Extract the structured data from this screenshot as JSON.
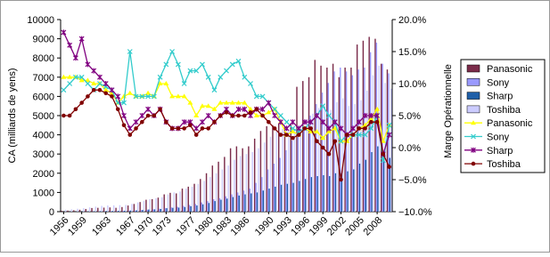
{
  "chart_data": {
    "type": "bar",
    "categories": [
      "1956",
      null,
      null,
      "1959",
      null,
      null,
      null,
      "1963",
      null,
      null,
      null,
      "1967",
      null,
      null,
      "1970",
      null,
      null,
      "1973",
      null,
      null,
      null,
      "1977",
      null,
      null,
      "1980",
      null,
      null,
      "1983",
      null,
      null,
      "1986",
      null,
      null,
      null,
      "1990",
      null,
      null,
      "1993",
      null,
      null,
      "1996",
      null,
      null,
      "1999",
      null,
      null,
      "2002",
      null,
      null,
      "2005",
      null,
      null,
      "2008",
      null,
      null
    ],
    "ylabel": "CA (milliards de yens)",
    "y2label": "Marge Opérationnelle",
    "ylim": [
      0,
      10000
    ],
    "yticks": [
      0,
      1000,
      2000,
      3000,
      4000,
      5000,
      6000,
      7000,
      8000,
      9000,
      10000
    ],
    "y2lim": [
      -10,
      20
    ],
    "y2ticks": [
      {
        "value": -10,
        "label": "−10.0%"
      },
      {
        "value": -5,
        "label": "−5.0%"
      },
      {
        "value": 0,
        "label": "0.0%"
      },
      {
        "value": 5,
        "label": "5.0%"
      },
      {
        "value": 10,
        "label": "10.0%"
      },
      {
        "value": 15,
        "label": "15.0%"
      },
      {
        "value": 20,
        "label": "20.0%"
      }
    ],
    "legend": "right",
    "series": [
      {
        "name": "Panasonic",
        "type": "bar",
        "color": "#7b2c4a",
        "values": [
          40,
          55,
          70,
          100,
          140,
          190,
          200,
          210,
          220,
          200,
          240,
          320,
          400,
          500,
          620,
          650,
          730,
          900,
          980,
          950,
          1200,
          1300,
          1450,
          1700,
          2000,
          2400,
          2600,
          2850,
          3300,
          3400,
          3300,
          3400,
          3800,
          4200,
          4450,
          4500,
          4600,
          4400,
          4600,
          6500,
          6800,
          7000,
          7900,
          7600,
          7500,
          7700,
          7000,
          7500,
          7500,
          8700,
          8900,
          9100,
          9000,
          7700,
          7400
        ]
      },
      {
        "name": "Sony",
        "type": "bar",
        "color": "#9999ff",
        "values": [
          0,
          0,
          0,
          5,
          10,
          15,
          20,
          25,
          30,
          35,
          40,
          50,
          60,
          80,
          100,
          120,
          150,
          180,
          220,
          250,
          300,
          350,
          400,
          480,
          550,
          650,
          700,
          800,
          900,
          1000,
          1100,
          1200,
          1500,
          1800,
          2200,
          2500,
          2800,
          3200,
          3700,
          4000,
          4400,
          5000,
          5600,
          6200,
          6700,
          7300,
          7500,
          7300,
          7100,
          7400,
          7500,
          8300,
          8800,
          7700,
          7200
        ]
      },
      {
        "name": "Sharp",
        "type": "bar",
        "color": "#1f5fa8",
        "values": [
          5,
          7,
          10,
          15,
          20,
          25,
          30,
          35,
          40,
          45,
          50,
          60,
          70,
          90,
          110,
          120,
          140,
          180,
          200,
          210,
          240,
          280,
          320,
          380,
          450,
          550,
          620,
          680,
          760,
          840,
          900,
          950,
          1000,
          1100,
          1200,
          1300,
          1400,
          1450,
          1500,
          1600,
          1700,
          1800,
          1850,
          1900,
          1850,
          2000,
          2000,
          2100,
          2200,
          2500,
          2700,
          3100,
          3400,
          2800,
          2800
        ]
      },
      {
        "name": "Toshiba",
        "type": "bar",
        "color": "#ccccff",
        "values": [
          100,
          120,
          150,
          180,
          220,
          260,
          300,
          320,
          330,
          340,
          350,
          400,
          480,
          560,
          650,
          700,
          750,
          900,
          1000,
          1050,
          1200,
          1300,
          1450,
          1600,
          1800,
          2000,
          2200,
          2400,
          2700,
          2900,
          3000,
          3100,
          3300,
          3600,
          3900,
          4200,
          4300,
          4200,
          4300,
          4500,
          4800,
          5100,
          5400,
          5500,
          5300,
          5700,
          5900,
          5500,
          5600,
          5800,
          6300,
          7100,
          7600,
          6700,
          6400
        ]
      },
      {
        "name": "Panasonic",
        "type": "line",
        "axis": "y2",
        "marker": "triangle",
        "color": "#ffff00",
        "values": [
          11,
          11,
          11,
          10.5,
          10.5,
          10,
          10,
          9,
          8.5,
          7,
          8,
          8.5,
          8,
          8,
          8.5,
          8,
          10,
          10,
          8,
          8,
          8,
          7,
          5,
          6.5,
          6.5,
          6,
          7,
          7,
          7,
          7,
          7,
          6,
          5,
          5,
          5.5,
          6,
          4,
          2,
          2.5,
          2,
          3,
          2.5,
          2.5,
          1.5,
          2.5,
          3,
          1,
          1,
          2,
          3,
          3.5,
          4.5,
          6,
          1,
          3.5
        ]
      },
      {
        "name": "Sony",
        "type": "line",
        "axis": "y2",
        "marker": "x",
        "color": "#33cccc",
        "values": [
          9,
          10,
          11,
          11,
          10,
          9,
          10,
          9.5,
          9,
          7,
          7,
          15,
          8,
          8,
          8,
          8,
          11,
          13,
          15,
          13,
          10,
          12,
          12,
          13,
          11,
          9,
          11,
          12,
          13,
          13.5,
          11,
          10,
          8,
          8,
          7,
          6,
          5,
          4,
          3,
          2.5,
          3,
          4,
          5,
          6.5,
          5,
          4,
          1,
          2,
          2,
          2,
          2,
          3,
          5,
          -2,
          3.5
        ]
      },
      {
        "name": "Sharp",
        "type": "line",
        "axis": "y2",
        "marker": "star",
        "color": "#800080",
        "values": [
          18,
          16,
          14,
          17,
          13,
          12,
          11,
          10,
          9,
          8,
          5,
          3,
          4,
          5,
          6,
          5,
          6,
          4,
          3,
          3,
          4,
          4,
          3,
          4,
          5,
          4,
          5,
          6,
          5,
          6,
          6,
          5,
          6,
          6,
          7,
          5,
          4,
          3,
          4,
          3,
          4,
          4,
          5,
          4,
          3,
          4,
          3,
          2,
          3,
          4,
          5,
          5,
          5,
          -1,
          2
        ]
      },
      {
        "name": "Toshiba",
        "type": "line",
        "axis": "y2",
        "marker": "circle",
        "color": "#800000",
        "values": [
          5,
          5,
          6,
          7,
          8,
          9,
          9,
          8.5,
          8,
          6,
          3.5,
          2,
          3,
          4,
          5,
          5,
          6,
          4,
          3,
          3,
          3,
          3.5,
          2,
          3,
          3,
          4,
          5,
          5.5,
          5,
          5,
          5,
          5.5,
          6,
          5,
          4,
          3,
          2,
          2,
          1.5,
          2,
          3,
          3,
          1,
          0,
          -1,
          1,
          -5,
          2,
          2,
          3,
          3,
          4,
          4,
          -1,
          -3
        ]
      }
    ]
  }
}
